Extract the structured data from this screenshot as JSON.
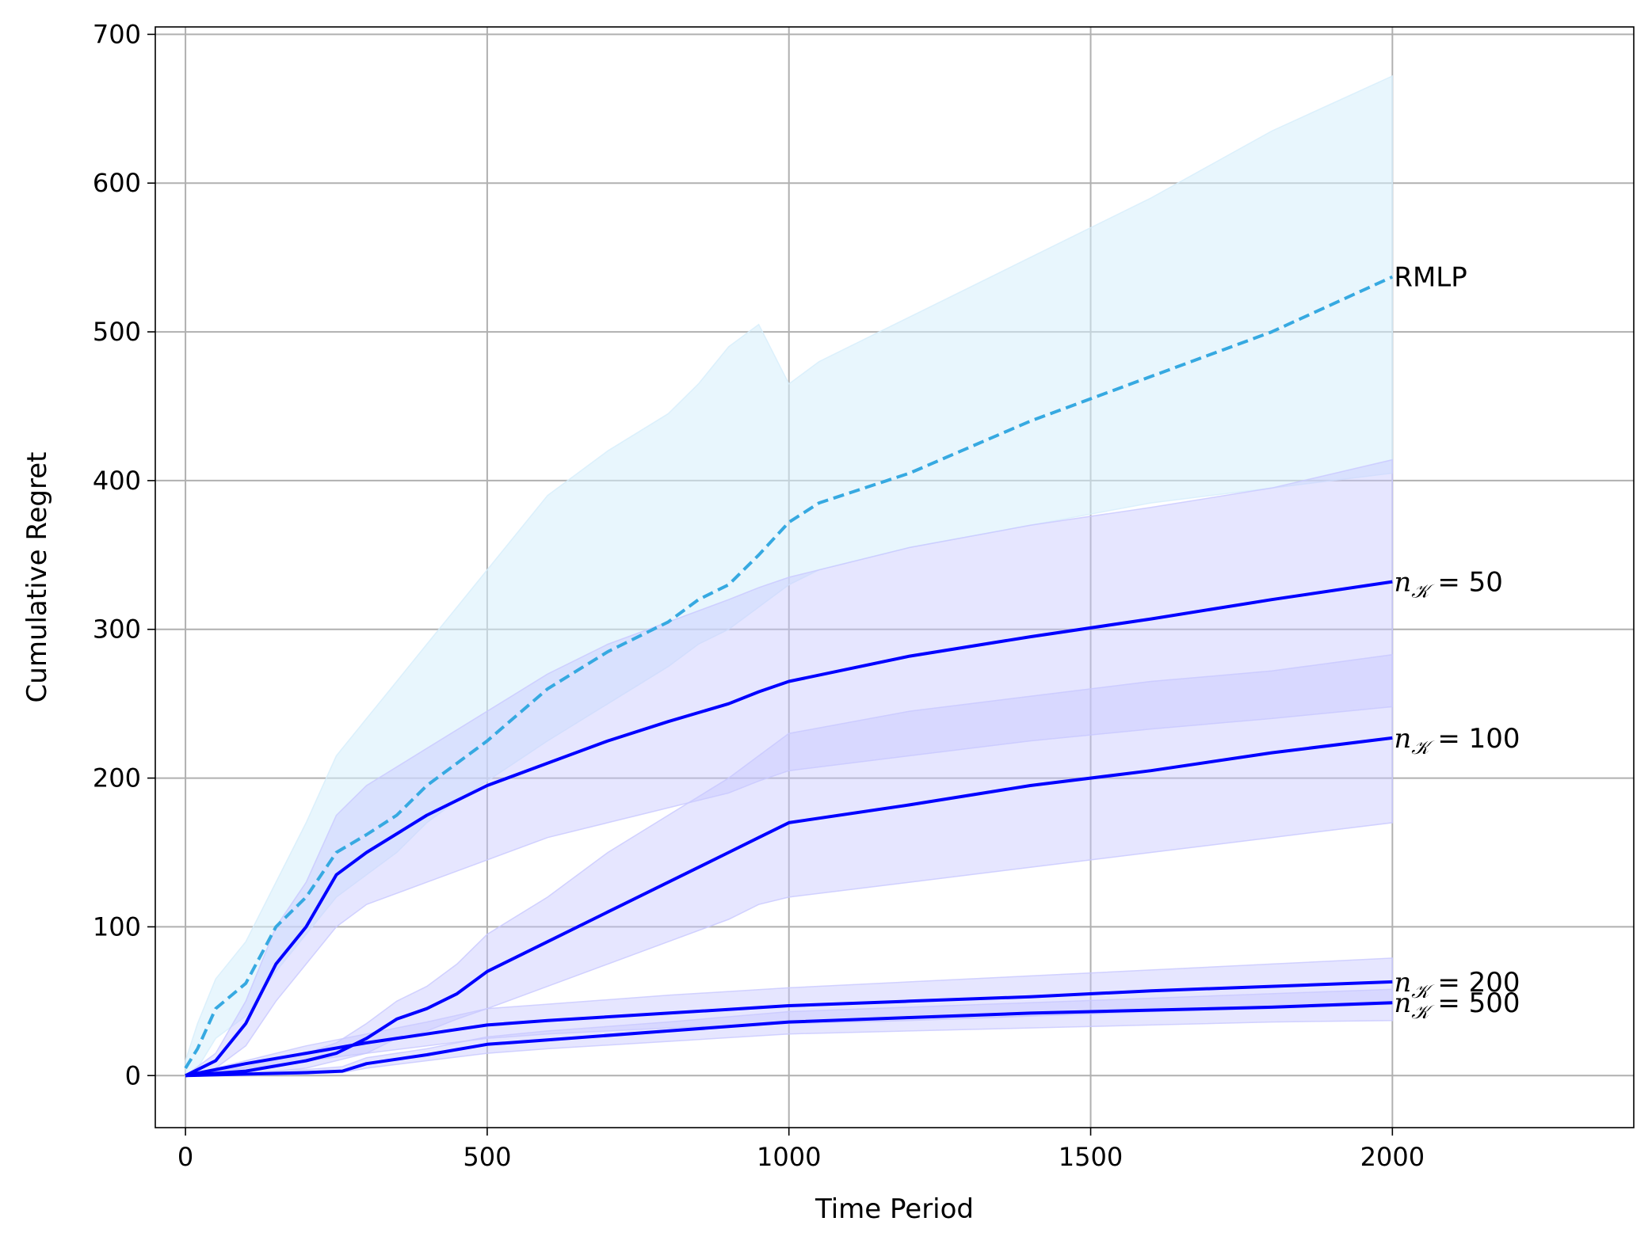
{
  "chart_data": {
    "type": "line",
    "title": "",
    "xlabel": "Time Period",
    "ylabel": "Cumulative Regret",
    "xlim": [
      -50,
      2400
    ],
    "ylim": [
      -35,
      705
    ],
    "xticks": [
      0,
      500,
      1000,
      1500,
      2000
    ],
    "yticks": [
      0,
      100,
      200,
      300,
      400,
      500,
      600,
      700
    ],
    "grid": true,
    "legend": "none",
    "series": [
      {
        "name": "RMLP",
        "label_parts": [
          "RMLP"
        ],
        "style": "dashed",
        "color": "#36a9e1",
        "band_color": "#d6eefb",
        "x": [
          0,
          20,
          50,
          100,
          150,
          200,
          250,
          300,
          350,
          400,
          450,
          500,
          600,
          700,
          800,
          850,
          900,
          950,
          1000,
          1050,
          1200,
          1400,
          1600,
          1800,
          2000
        ],
        "y": [
          5,
          18,
          45,
          62,
          100,
          120,
          150,
          162,
          175,
          195,
          210,
          225,
          260,
          285,
          305,
          320,
          330,
          350,
          372,
          385,
          405,
          440,
          470,
          500,
          537
        ],
        "lower": [
          0,
          5,
          25,
          40,
          70,
          95,
          120,
          135,
          150,
          170,
          185,
          198,
          225,
          250,
          275,
          290,
          300,
          315,
          330,
          340,
          355,
          370,
          385,
          395,
          405
        ],
        "upper": [
          10,
          35,
          65,
          90,
          130,
          170,
          215,
          240,
          265,
          290,
          315,
          340,
          390,
          420,
          445,
          465,
          490,
          505,
          465,
          480,
          510,
          550,
          590,
          635,
          672
        ]
      },
      {
        "name": "n_K = 50",
        "label_parts": [
          "n",
          "𝒦",
          " = 50"
        ],
        "style": "solid",
        "color": "#0000ff",
        "band_color": "#c8c8ff",
        "x": [
          0,
          50,
          100,
          150,
          200,
          250,
          300,
          400,
          500,
          600,
          700,
          800,
          900,
          950,
          1000,
          1200,
          1400,
          1600,
          1800,
          2000
        ],
        "y": [
          0,
          10,
          35,
          75,
          100,
          135,
          150,
          175,
          195,
          210,
          225,
          238,
          250,
          258,
          265,
          282,
          295,
          307,
          320,
          332
        ],
        "lower": [
          0,
          5,
          20,
          50,
          75,
          100,
          115,
          130,
          145,
          160,
          170,
          180,
          190,
          198,
          205,
          215,
          225,
          233,
          240,
          248
        ],
        "upper": [
          0,
          15,
          50,
          100,
          130,
          175,
          195,
          220,
          245,
          270,
          290,
          305,
          320,
          328,
          335,
          355,
          370,
          382,
          395,
          414
        ]
      },
      {
        "name": "n_K = 100",
        "label_parts": [
          "n",
          "𝒦",
          " = 100"
        ],
        "style": "solid",
        "color": "#0000ff",
        "band_color": "#c8c8ff",
        "x": [
          0,
          100,
          200,
          250,
          300,
          350,
          400,
          450,
          500,
          600,
          700,
          800,
          900,
          950,
          1000,
          1200,
          1400,
          1600,
          1800,
          2000
        ],
        "y": [
          0,
          3,
          10,
          15,
          25,
          38,
          45,
          55,
          70,
          90,
          110,
          130,
          150,
          160,
          170,
          182,
          195,
          205,
          217,
          227
        ],
        "lower": [
          0,
          1,
          5,
          10,
          15,
          25,
          30,
          38,
          45,
          60,
          75,
          90,
          105,
          115,
          120,
          130,
          140,
          150,
          160,
          170
        ],
        "upper": [
          0,
          6,
          15,
          22,
          35,
          50,
          60,
          75,
          95,
          120,
          150,
          175,
          200,
          215,
          230,
          245,
          255,
          265,
          272,
          283
        ]
      },
      {
        "name": "n_K = 200",
        "label_parts": [
          "n",
          "𝒦",
          " = 200"
        ],
        "style": "solid",
        "color": "#0000ff",
        "band_color": "#c8c8ff",
        "x": [
          0,
          100,
          200,
          300,
          400,
          500,
          600,
          800,
          1000,
          1200,
          1400,
          1600,
          1800,
          2000
        ],
        "y": [
          0,
          8,
          15,
          22,
          28,
          34,
          37,
          42,
          47,
          50,
          53,
          57,
          60,
          63
        ],
        "lower": [
          0,
          5,
          10,
          15,
          20,
          25,
          28,
          32,
          35,
          37,
          40,
          43,
          45,
          48
        ],
        "upper": [
          0,
          10,
          20,
          28,
          36,
          45,
          48,
          54,
          59,
          63,
          67,
          71,
          75,
          79
        ]
      },
      {
        "name": "n_K = 500",
        "label_parts": [
          "n",
          "𝒦",
          " = 500"
        ],
        "style": "solid",
        "color": "#0000ff",
        "band_color": "#c8c8ff",
        "x": [
          0,
          100,
          200,
          260,
          300,
          400,
          500,
          600,
          800,
          1000,
          1200,
          1400,
          1600,
          1800,
          2000
        ],
        "y": [
          0,
          1,
          2,
          3,
          8,
          14,
          21,
          24,
          30,
          36,
          39,
          42,
          44,
          46,
          49
        ],
        "lower": [
          0,
          0,
          1,
          2,
          5,
          10,
          15,
          18,
          23,
          28,
          30,
          32,
          34,
          36,
          37
        ],
        "upper": [
          0,
          2,
          4,
          6,
          12,
          18,
          26,
          30,
          36,
          43,
          46,
          49,
          52,
          55,
          58
        ]
      }
    ]
  }
}
